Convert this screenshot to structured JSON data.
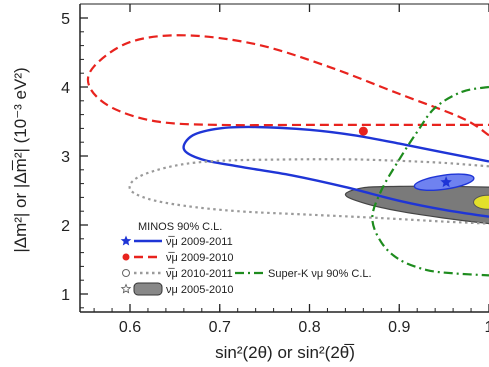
{
  "chart_data": {
    "type": "contour",
    "title": "",
    "xlabel": "sin²(2θ) or sin²(2θ̅)",
    "ylabel": "|Δm²| or |Δm̅²| (10⁻³ eV²)",
    "xlim": [
      0.54,
      1.0
    ],
    "ylim": [
      0.5,
      5.2
    ],
    "xticks": [
      0.6,
      0.7,
      0.8,
      0.9,
      1.0
    ],
    "xtick_labels": [
      "0.6",
      "0.7",
      "0.8",
      "0.9",
      "1"
    ],
    "yticks": [
      1,
      2,
      3,
      4,
      5
    ],
    "ytick_labels": [
      "1",
      "2",
      "3",
      "4",
      "5"
    ],
    "legend_title": "MINOS 90% C.L.",
    "legend_placement": "bottom-left",
    "series": [
      {
        "name": "ν̅μ 2009-2011",
        "style": "solid",
        "color": "#1f35d6",
        "best_fit": {
          "x": 0.95,
          "y": 2.62,
          "marker": "star"
        },
        "contour": [
          [
            1.0,
            2.92
          ],
          [
            0.95,
            3.05
          ],
          [
            0.9,
            3.18
          ],
          [
            0.85,
            3.3
          ],
          [
            0.8,
            3.38
          ],
          [
            0.74,
            3.42
          ],
          [
            0.7,
            3.4
          ],
          [
            0.67,
            3.3
          ],
          [
            0.66,
            3.1
          ],
          [
            0.68,
            2.95
          ],
          [
            0.72,
            2.85
          ],
          [
            0.78,
            2.72
          ],
          [
            0.84,
            2.55
          ],
          [
            0.9,
            2.35
          ],
          [
            0.95,
            2.22
          ],
          [
            1.0,
            2.12
          ]
        ]
      },
      {
        "name": "ν̅μ 2009-2010",
        "style": "dashed",
        "color": "#e8231e",
        "best_fit": {
          "x": 0.86,
          "y": 3.36,
          "marker": "circle"
        },
        "contour": [
          [
            1.0,
            3.3
          ],
          [
            0.97,
            3.55
          ],
          [
            0.9,
            3.9
          ],
          [
            0.82,
            4.3
          ],
          [
            0.74,
            4.62
          ],
          [
            0.66,
            4.75
          ],
          [
            0.6,
            4.65
          ],
          [
            0.56,
            4.3
          ],
          [
            0.555,
            4.0
          ],
          [
            0.58,
            3.7
          ],
          [
            0.63,
            3.5
          ],
          [
            0.7,
            3.45
          ],
          [
            0.8,
            3.45
          ],
          [
            0.9,
            3.45
          ],
          [
            1.0,
            3.45
          ]
        ]
      },
      {
        "name": "ν̅μ 2010-2011",
        "style": "dotted",
        "color": "#9a9a9a",
        "best_fit": {
          "x": 0.95,
          "y": 2.62,
          "marker": "open-circle"
        },
        "contour": [
          [
            1.0,
            2.85
          ],
          [
            0.95,
            2.9
          ],
          [
            0.9,
            2.93
          ],
          [
            0.85,
            2.95
          ],
          [
            0.78,
            2.95
          ],
          [
            0.7,
            2.93
          ],
          [
            0.65,
            2.86
          ],
          [
            0.61,
            2.7
          ],
          [
            0.6,
            2.52
          ],
          [
            0.62,
            2.38
          ],
          [
            0.66,
            2.28
          ],
          [
            0.72,
            2.2
          ],
          [
            0.8,
            2.15
          ],
          [
            0.88,
            2.1
          ],
          [
            0.95,
            2.05
          ],
          [
            1.0,
            2.02
          ]
        ]
      },
      {
        "name": "νμ 2005-2010",
        "style": "filled",
        "color": "#7a7a7a",
        "best_fit": {
          "x": 0.99,
          "y": 2.33,
          "marker": "open-star"
        },
        "contour": [
          [
            1.0,
            2.55
          ],
          [
            0.95,
            2.56
          ],
          [
            0.9,
            2.56
          ],
          [
            0.86,
            2.54
          ],
          [
            0.84,
            2.44
          ],
          [
            0.86,
            2.32
          ],
          [
            0.9,
            2.2
          ],
          [
            0.95,
            2.1
          ],
          [
            1.0,
            2.02
          ]
        ]
      },
      {
        "name": "Super-K νμ 90% C.L.",
        "style": "dashdot",
        "color": "#1e8c1e",
        "contour": [
          [
            1.0,
            4.0
          ],
          [
            0.97,
            3.93
          ],
          [
            0.94,
            3.7
          ],
          [
            0.92,
            3.35
          ],
          [
            0.9,
            2.95
          ],
          [
            0.88,
            2.5
          ],
          [
            0.87,
            2.1
          ],
          [
            0.88,
            1.75
          ],
          [
            0.9,
            1.5
          ],
          [
            0.93,
            1.35
          ],
          [
            0.96,
            1.3
          ],
          [
            1.0,
            1.27
          ]
        ]
      }
    ],
    "blue_filled_ellipse": {
      "center_x": 0.95,
      "center_y": 2.62,
      "rx": 0.02,
      "ry": 0.06,
      "color": "#6f82f0"
    },
    "yellow_region_edge": {
      "x_start": 0.985,
      "y": 2.33,
      "color": "#e3e02a"
    }
  }
}
